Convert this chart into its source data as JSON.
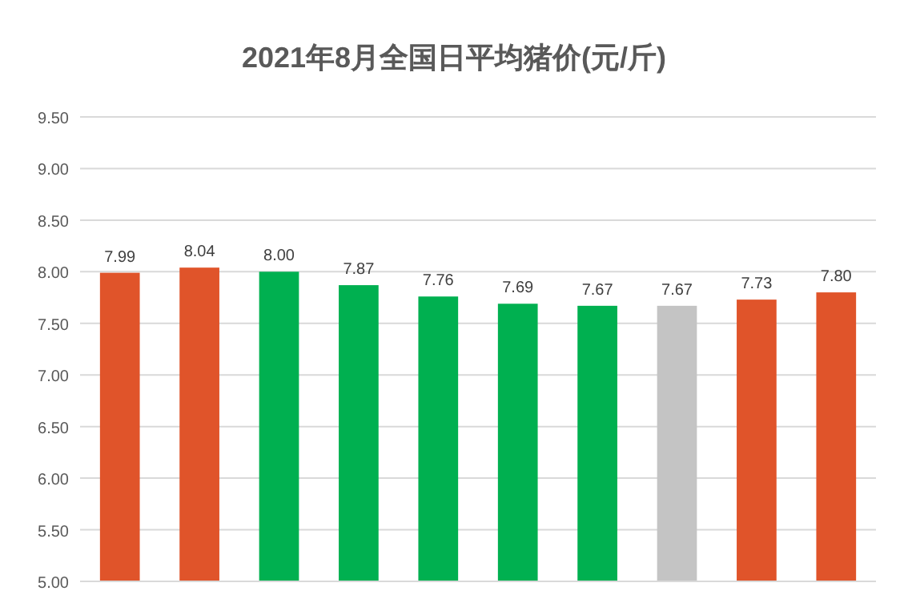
{
  "chart_data": {
    "type": "bar",
    "title": "2021年8月全国日平均猪价(元/斤)",
    "categories": [
      null,
      null,
      null,
      null,
      null,
      null,
      null,
      null,
      null,
      null
    ],
    "values": [
      7.99,
      8.04,
      8.0,
      7.87,
      7.76,
      7.69,
      7.67,
      7.67,
      7.73,
      7.8
    ],
    "value_labels": [
      "7.99",
      "8.04",
      "8.00",
      "7.87",
      "7.76",
      "7.69",
      "7.67",
      "7.67",
      "7.73",
      "7.80"
    ],
    "colors": [
      "#e0542a",
      "#e0542a",
      "#00b050",
      "#00b050",
      "#00b050",
      "#00b050",
      "#00b050",
      "#c4c4c4",
      "#e0542a",
      "#e0542a"
    ],
    "ylim": [
      5,
      9.5
    ],
    "yticks": [
      {
        "value": 5,
        "label": "5.00"
      },
      {
        "value": 5.5,
        "label": "5.50"
      },
      {
        "value": 6,
        "label": "6.00"
      },
      {
        "value": 6.5,
        "label": "6.50"
      },
      {
        "value": 7,
        "label": "7.00"
      },
      {
        "value": 7.5,
        "label": "7.50"
      },
      {
        "value": 8,
        "label": "8.00"
      },
      {
        "value": 8.5,
        "label": "8.50"
      },
      {
        "value": 9,
        "label": "9.00"
      },
      {
        "value": 9.5,
        "label": "9.50"
      }
    ],
    "grid": "y"
  }
}
